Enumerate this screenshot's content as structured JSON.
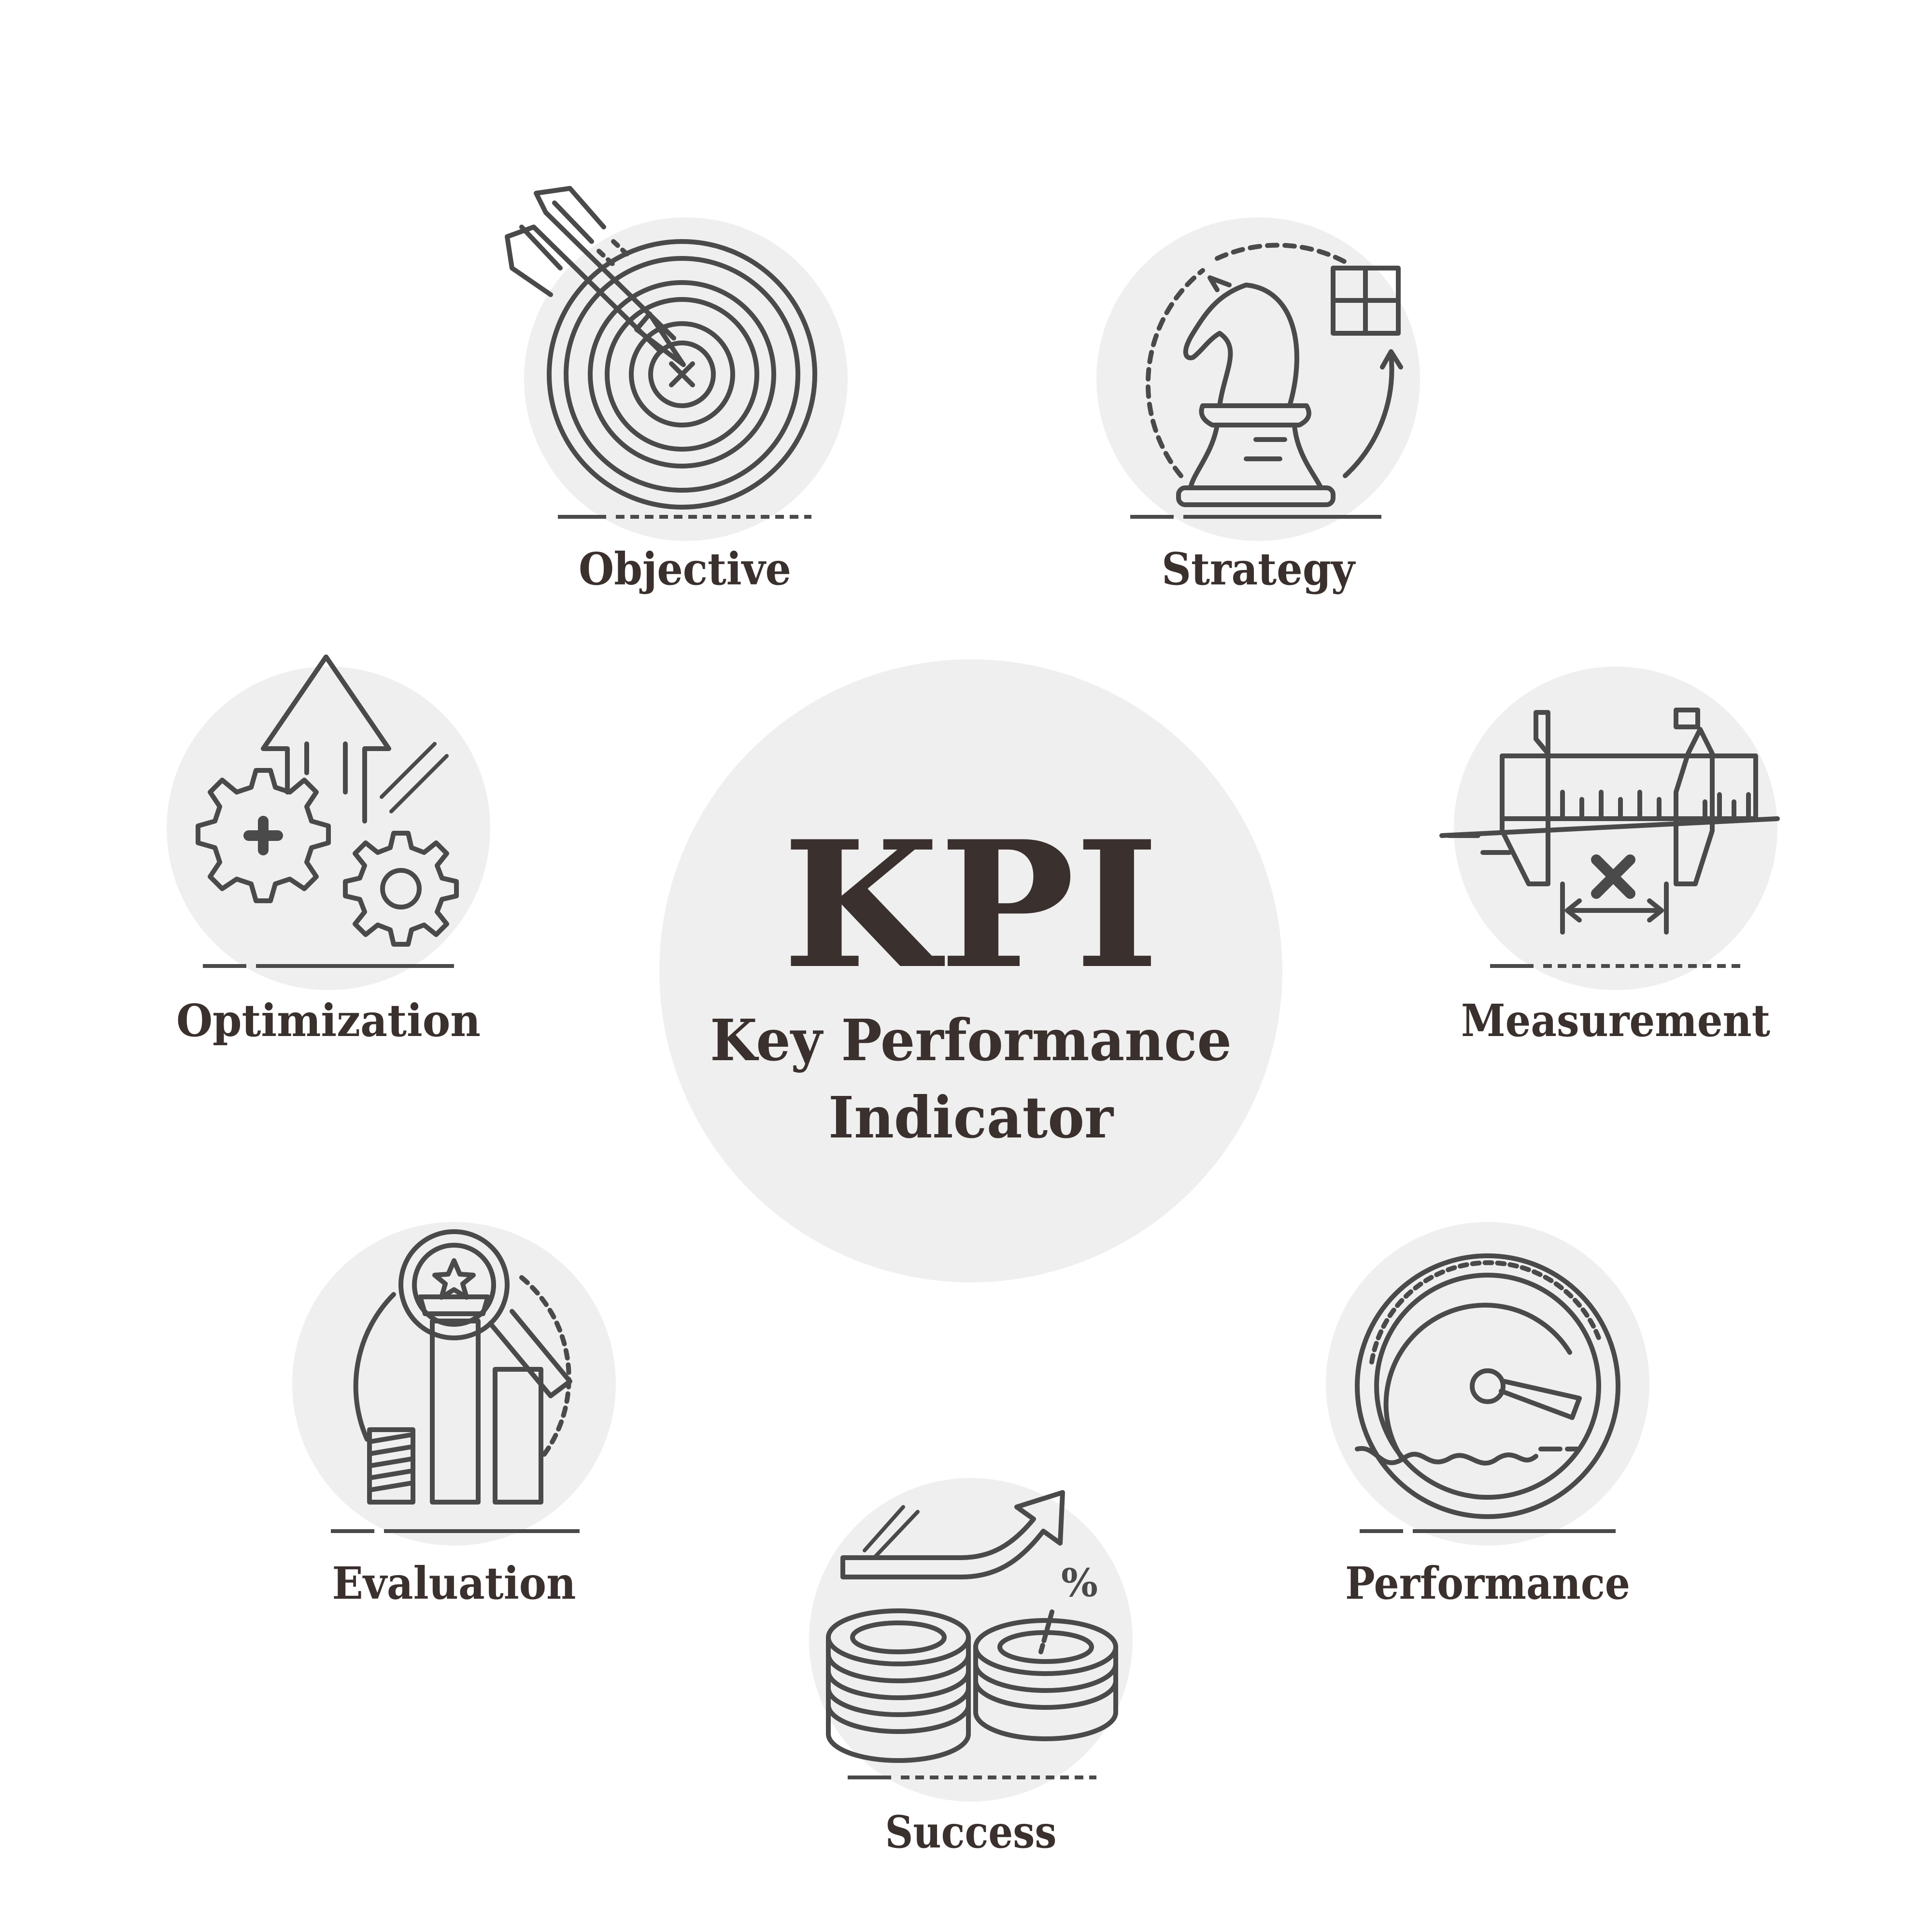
{
  "colors": {
    "background": "#ffffff",
    "disc": "#efefef",
    "ink": "#3a302d",
    "line": "#4a4a4a"
  },
  "center": {
    "acronym": "KPI",
    "subtitle_line1": "Key Performance",
    "subtitle_line2": "Indicator"
  },
  "nodes": [
    {
      "id": "objective",
      "label": "Objective",
      "icon": "target-arrow-icon"
    },
    {
      "id": "strategy",
      "label": "Strategy",
      "icon": "chess-knight-icon"
    },
    {
      "id": "measurement",
      "label": "Measurement",
      "icon": "caliper-icon"
    },
    {
      "id": "performance",
      "label": "Performance",
      "icon": "speedometer-icon"
    },
    {
      "id": "success",
      "label": "Success",
      "icon": "coin-stacks-growth-icon"
    },
    {
      "id": "evaluation",
      "label": "Evaluation",
      "icon": "magnifier-bar-chart-icon"
    },
    {
      "id": "optimization",
      "label": "Optimization",
      "icon": "gears-arrow-icon"
    }
  ]
}
